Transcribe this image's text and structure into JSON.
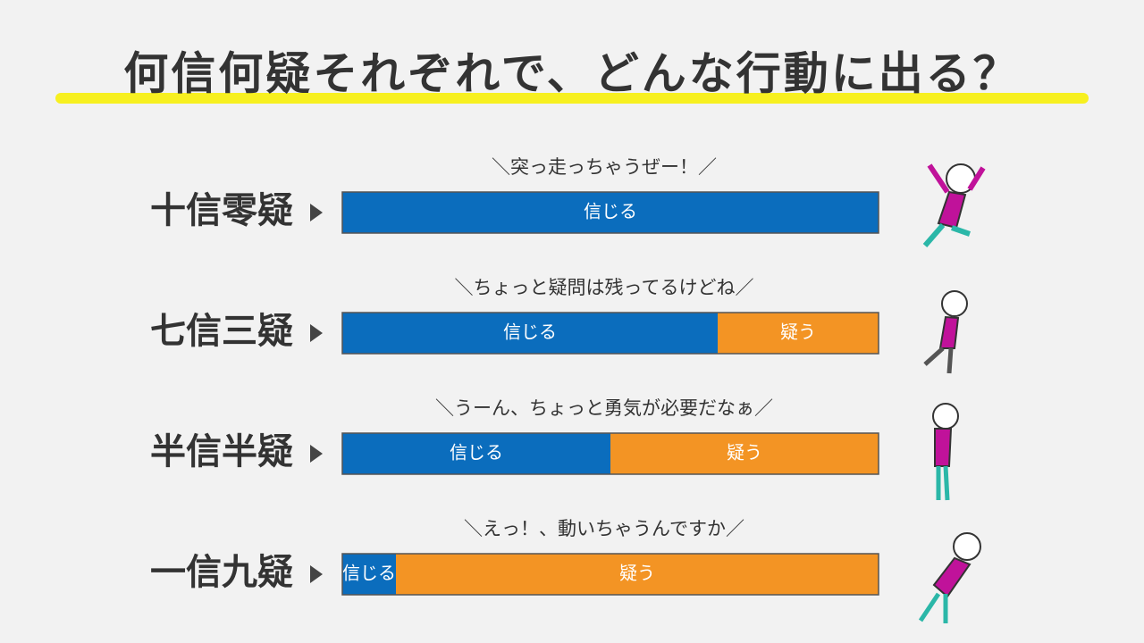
{
  "chart_data": {
    "type": "bar",
    "orientation": "horizontal",
    "stacked": true,
    "title": "何信何疑それぞれで、どんな行動に出る？",
    "categories": [
      "十信零疑",
      "七信三疑",
      "半信半疑",
      "一信九疑"
    ],
    "annotations": [
      "＼突っ走っちゃうぜー！／",
      "＼ちょっと疑問は残ってるけどね／",
      "＼うーん、ちょっと勇気が必要だなぁ／",
      "＼えっ！、動いちゃうんですか／"
    ],
    "series": [
      {
        "name": "信じる",
        "color": "#0b6dbd",
        "values": [
          10,
          7,
          5,
          1
        ]
      },
      {
        "name": "疑う",
        "color": "#f39424",
        "values": [
          0,
          3,
          5,
          9
        ]
      }
    ],
    "xlim": [
      0,
      10
    ]
  }
}
